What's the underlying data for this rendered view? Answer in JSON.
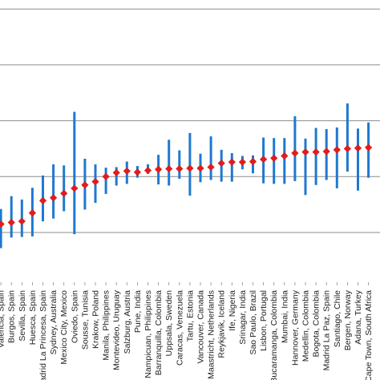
{
  "colors": {
    "error_bar": "#1f78d1",
    "point": "#e01c1c",
    "grid": "#8c8c8c"
  },
  "chart_data": {
    "type": "scatter",
    "title": "",
    "xlabel": "",
    "ylabel": "",
    "grid": true,
    "y_gridlines": [
      5,
      4,
      3,
      2,
      1
    ],
    "ylim": [
      0,
      5.5
    ],
    "categories": [
      "",
      "Valencia, Spain",
      "Burgos, Spain",
      "Sevilla, Spain",
      "Huesca, Spain",
      "Madrid La Princesa, Spain",
      "Sydney, Australia",
      "Mexico City, Mexico",
      "Oviedo, Spain",
      "Sousse, Tunisia",
      "Krakow, Poland",
      "Manila, Philippines",
      "Montevideo, Uruguay",
      "Salzburg, Austria",
      "Pune, India",
      "Nampicuan, Philippines",
      "Barranquilla, Colombia",
      "Uppsala, Sweden",
      "Caracas, Venezuela",
      "Tartu, Estonia",
      "Vancouver, Canada",
      "Maastricht, Netherlands",
      "Reykjavik, Iceland",
      "Ife, Nigeria",
      "Srinagar, India",
      "Sao Paulo, Brazil",
      "Lisbon, Portugal",
      "Bucaramanga, Colombia",
      "Mumbai, India",
      "Hannover, Germany",
      "Medellin, Colombia",
      "Bogota, Colombia",
      "Madrid La Paz, Spain",
      "Santiago, Chile",
      "Bergen, Norway",
      "Adana, Turkey",
      "Cape Town, South Africa"
    ],
    "values": [
      null,
      1.15,
      1.18,
      1.2,
      1.35,
      1.57,
      1.62,
      1.7,
      1.79,
      1.85,
      1.91,
      2.0,
      2.07,
      2.1,
      2.08,
      2.11,
      2.13,
      2.14,
      2.14,
      2.15,
      2.15,
      2.17,
      2.24,
      2.26,
      2.26,
      2.27,
      2.31,
      2.33,
      2.37,
      2.42,
      2.44,
      2.44,
      2.45,
      2.48,
      2.5,
      2.51,
      2.52
    ],
    "lower": [
      null,
      0.72,
      0.91,
      0.92,
      0.93,
      1.2,
      1.25,
      1.38,
      0.97,
      1.41,
      1.53,
      1.69,
      1.84,
      1.87,
      1.98,
      2.05,
      1.86,
      1.84,
      1.96,
      1.66,
      1.9,
      1.94,
      1.91,
      1.91,
      2.13,
      2.06,
      1.88,
      1.87,
      1.87,
      1.92,
      1.67,
      1.85,
      1.94,
      1.79,
      2.09,
      1.75,
      1.98
    ],
    "upper": [
      null,
      1.42,
      1.65,
      1.59,
      1.8,
      2.02,
      2.22,
      2.2,
      3.16,
      2.32,
      2.22,
      2.16,
      2.17,
      2.27,
      2.19,
      2.22,
      2.39,
      2.66,
      2.47,
      2.78,
      2.41,
      2.72,
      2.48,
      2.42,
      2.37,
      2.38,
      2.7,
      2.69,
      2.69,
      3.08,
      2.68,
      2.87,
      2.85,
      2.88,
      3.31,
      2.86,
      2.97
    ]
  }
}
